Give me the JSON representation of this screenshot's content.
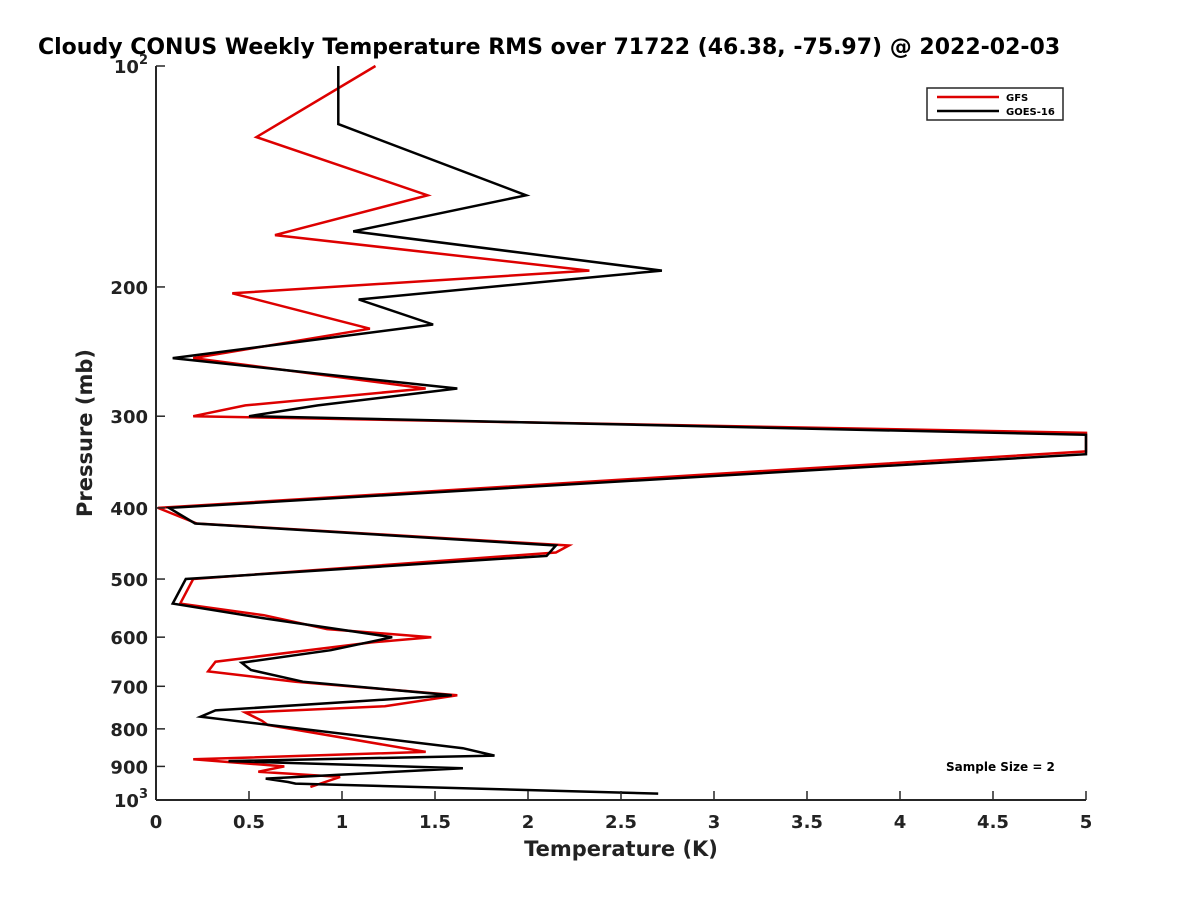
{
  "chart_data": {
    "type": "line",
    "title": "Cloudy CONUS Weekly Temperature RMS over 71722 (46.38, -75.97) @ 2022-02-03",
    "xlabel": "Temperature (K)",
    "ylabel": "Pressure (mb)",
    "xlim": [
      0,
      5
    ],
    "ylim": [
      100,
      1000
    ],
    "y_scale": "log",
    "y_reversed": true,
    "x_ticks": [
      "0",
      "0.5",
      "1",
      "1.5",
      "2",
      "2.5",
      "3",
      "3.5",
      "4",
      "4.5",
      "5"
    ],
    "y_ticks": [
      {
        "value": 100,
        "base": "10",
        "exp": "2"
      },
      {
        "value": 200,
        "label": "200"
      },
      {
        "value": 300,
        "label": "300"
      },
      {
        "value": 400,
        "label": "400"
      },
      {
        "value": 500,
        "label": "500"
      },
      {
        "value": 600,
        "label": "600"
      },
      {
        "value": 700,
        "label": "700"
      },
      {
        "value": 800,
        "label": "800"
      },
      {
        "value": 900,
        "label": "900"
      },
      {
        "value": 1000,
        "base": "10",
        "exp": "3"
      }
    ],
    "grid": false,
    "legend_position": "top-right",
    "annotation": "Sample Size = 2",
    "series": [
      {
        "name": "GFS",
        "color": "#dd0000",
        "points": [
          [
            1.18,
            100
          ],
          [
            0.54,
            125
          ],
          [
            1.46,
            150
          ],
          [
            0.64,
            170
          ],
          [
            2.33,
            190
          ],
          [
            0.41,
            204
          ],
          [
            1.15,
            228
          ],
          [
            0.2,
            250
          ],
          [
            1.45,
            275
          ],
          [
            0.48,
            290
          ],
          [
            0.2,
            300
          ],
          [
            5.0,
            316
          ],
          [
            5.0,
            335
          ],
          [
            0.01,
            400
          ],
          [
            0.22,
            420
          ],
          [
            2.22,
            450
          ],
          [
            2.15,
            460
          ],
          [
            0.2,
            500
          ],
          [
            0.13,
            540
          ],
          [
            0.58,
            560
          ],
          [
            0.92,
            585
          ],
          [
            1.48,
            600
          ],
          [
            1.16,
            610
          ],
          [
            0.32,
            648
          ],
          [
            0.28,
            668
          ],
          [
            0.75,
            690
          ],
          [
            1.62,
            720
          ],
          [
            1.23,
            745
          ],
          [
            0.48,
            760
          ],
          [
            0.57,
            780
          ],
          [
            0.6,
            790
          ],
          [
            1.45,
            860
          ],
          [
            0.2,
            880
          ],
          [
            0.69,
            900
          ],
          [
            0.55,
            915
          ],
          [
            0.99,
            930
          ],
          [
            0.83,
            960
          ]
        ]
      },
      {
        "name": "GOES-16",
        "color": "#000000",
        "points": [
          [
            0.98,
            100
          ],
          [
            0.98,
            120
          ],
          [
            1.99,
            150
          ],
          [
            1.06,
            168
          ],
          [
            2.72,
            190
          ],
          [
            1.09,
            208
          ],
          [
            1.49,
            225
          ],
          [
            0.09,
            250
          ],
          [
            1.62,
            275
          ],
          [
            0.87,
            290
          ],
          [
            0.5,
            300
          ],
          [
            5.0,
            318
          ],
          [
            5.0,
            338
          ],
          [
            0.07,
            400
          ],
          [
            0.21,
            420
          ],
          [
            2.15,
            450
          ],
          [
            2.1,
            465
          ],
          [
            0.16,
            500
          ],
          [
            0.09,
            540
          ],
          [
            0.57,
            565
          ],
          [
            1.27,
            600
          ],
          [
            0.94,
            625
          ],
          [
            0.46,
            650
          ],
          [
            0.51,
            665
          ],
          [
            0.79,
            690
          ],
          [
            1.59,
            720
          ],
          [
            0.32,
            755
          ],
          [
            0.24,
            770
          ],
          [
            1.65,
            850
          ],
          [
            1.82,
            870
          ],
          [
            0.39,
            885
          ],
          [
            1.65,
            905
          ],
          [
            0.59,
            935
          ],
          [
            0.71,
            945
          ],
          [
            0.75,
            950
          ],
          [
            2.7,
            980
          ]
        ]
      }
    ]
  }
}
